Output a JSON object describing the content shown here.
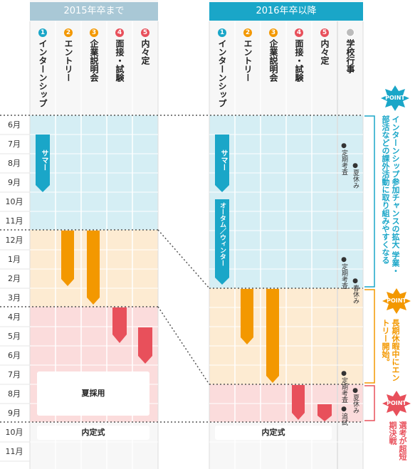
{
  "left_header": "2015年卒まで",
  "right_header": "2016年卒以降",
  "months": [
    "6月",
    "7月",
    "8月",
    "9月",
    "10月",
    "11月",
    "12月",
    "1月",
    "2月",
    "3月",
    "4月",
    "5月",
    "6月",
    "7月",
    "8月",
    "9月",
    "10月",
    "11月"
  ],
  "left_columns": [
    {
      "num": "1",
      "label": "インターンシップ",
      "color": "#1aa6c8"
    },
    {
      "num": "2",
      "label": "エントリー",
      "color": "#f39800"
    },
    {
      "num": "3",
      "label": "企業説明会",
      "color": "#f39800"
    },
    {
      "num": "4",
      "label": "面接・試験",
      "color": "#e8505b"
    },
    {
      "num": "5",
      "label": "内々定",
      "color": "#e8505b"
    }
  ],
  "right_columns": [
    {
      "num": "1",
      "label": "インターンシップ",
      "color": "#1aa6c8"
    },
    {
      "num": "2",
      "label": "エントリー",
      "color": "#f39800"
    },
    {
      "num": "3",
      "label": "企業説明会",
      "color": "#f39800"
    },
    {
      "num": "4",
      "label": "面接・試験",
      "color": "#e8505b"
    },
    {
      "num": "5",
      "label": "内々定",
      "color": "#e8505b"
    },
    {
      "num": "●",
      "label": "学校行事",
      "color": "#bbbbbb"
    }
  ],
  "bars": {
    "left_summer": "サマー",
    "right_summer": "サマー",
    "right_autumn": "オータム／ウィンター"
  },
  "boxes": {
    "summer_hiring": "夏採用",
    "left_ceremony": "内定式",
    "right_ceremony": "内定式"
  },
  "school_events": {
    "exam1": "●定期考査",
    "summer_break": "●夏休み",
    "exam2": "●定期考査",
    "spring_break": "●春休み",
    "exam3": "●定期考査",
    "summer_break2": "●夏休み",
    "exam4": "●追試"
  },
  "points": [
    {
      "badge": "POINT",
      "text": "インターンシップ参加チャンスの拡大 学業・部活などの課外活動に取り組みやすくなる",
      "color": "#1aa6c8"
    },
    {
      "badge": "POINT",
      "text": "長期休暇中にエントリー開始。",
      "color": "#f39800"
    },
    {
      "badge": "POINT",
      "text": "選考が超短期決戦",
      "color": "#e8505b"
    }
  ],
  "colors": {
    "blue_header": "#1aa6c8",
    "gray_header": "#a9c8d6",
    "blue_zone": "#d5eef4",
    "orange_zone": "#fdebd2",
    "pink_zone": "#fbdcdc",
    "blue": "#1aa6c8",
    "orange": "#f39800",
    "red": "#e8505b"
  }
}
